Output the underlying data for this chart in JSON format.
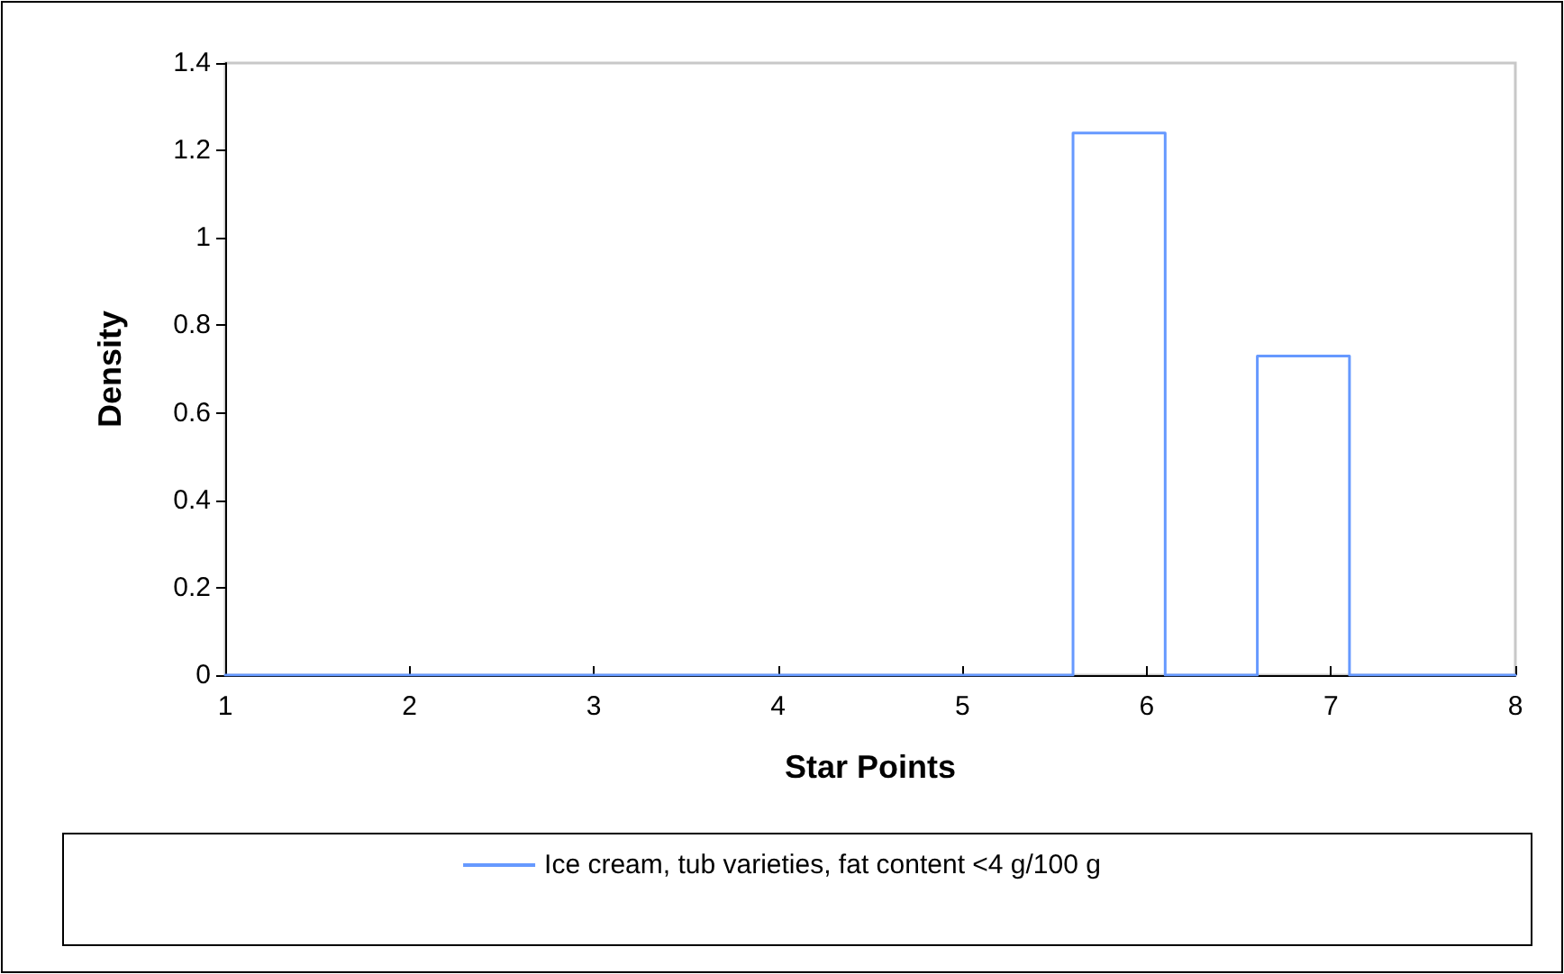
{
  "chart_data": {
    "type": "line",
    "xlabel": "Star Points",
    "ylabel": "Density",
    "x": [
      1,
      5.6,
      5.6,
      6.1,
      6.1,
      6.6,
      6.6,
      7.1,
      7.1,
      8
    ],
    "series": [
      {
        "name": "Ice cream, tub varieties, fat content <4 g/100 g",
        "color": "#6699ff",
        "values": [
          0,
          0,
          1.24,
          1.24,
          0,
          0,
          0.73,
          0.73,
          0,
          0
        ]
      }
    ],
    "xlim": [
      1,
      8
    ],
    "xticks": [
      1,
      2,
      3,
      4,
      5,
      6,
      7,
      8
    ],
    "ylim": [
      0,
      1.4
    ],
    "yticks": [
      0,
      0.2,
      0.4,
      0.6,
      0.8,
      1,
      1.2,
      1.4
    ],
    "grid": false,
    "legend": "bottom",
    "marker": "none",
    "line_style": "solid"
  }
}
